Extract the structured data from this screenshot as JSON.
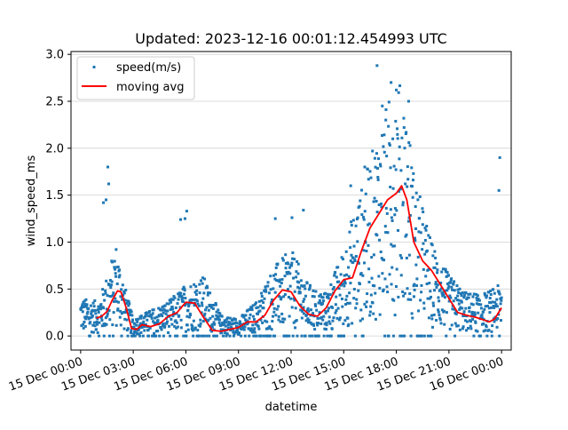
{
  "chart_data": {
    "type": "scatter",
    "title": "Updated: 2023-12-16 00:01:12.454993 UTC",
    "xlabel": "datetime",
    "ylabel": "wind_speed_ms",
    "x_unit": "hours since 15 Dec 00:00",
    "xlim": [
      "15 Dec 00:00 -0.55h",
      "16 Dec 00:00 +0.55h"
    ],
    "ylim": [
      -0.15,
      3.03
    ],
    "x_ticks": [
      {
        "hour": 0,
        "label": "15 Dec 00:00"
      },
      {
        "hour": 3,
        "label": "15 Dec 03:00"
      },
      {
        "hour": 6,
        "label": "15 Dec 06:00"
      },
      {
        "hour": 9,
        "label": "15 Dec 09:00"
      },
      {
        "hour": 12,
        "label": "15 Dec 12:00"
      },
      {
        "hour": 15,
        "label": "15 Dec 15:00"
      },
      {
        "hour": 18,
        "label": "15 Dec 18:00"
      },
      {
        "hour": 21,
        "label": "15 Dec 21:00"
      },
      {
        "hour": 24,
        "label": "16 Dec 00:00"
      }
    ],
    "y_ticks": [
      "0.0",
      "0.5",
      "1.0",
      "1.5",
      "2.0",
      "2.5",
      "3.0"
    ],
    "y_tick_values": [
      0,
      0.5,
      1.0,
      1.5,
      2.0,
      2.5,
      3.0
    ],
    "grid": "horizontal",
    "legend": {
      "position": "top-left",
      "entries": [
        {
          "label": "speed(m/s)",
          "color": "#1f77b4",
          "marker": "point"
        },
        {
          "label": "moving avg",
          "color": "#ff0000",
          "marker": "line"
        }
      ]
    },
    "series": [
      {
        "name": "speed(m/s)",
        "kind": "scatter",
        "color": "#1f77b4",
        "x_start_hour": 0,
        "x_end_hour": 24,
        "samples": 1400,
        "envelope_hours": [
          0,
          1,
          1.5,
          2,
          2.5,
          3,
          4,
          5,
          6,
          7,
          8,
          9,
          10,
          11,
          12,
          13,
          14,
          15,
          15.5,
          16,
          17,
          17.5,
          18,
          18.5,
          19,
          20,
          21,
          22,
          23,
          24
        ],
        "envelope_mean": [
          0.22,
          0.2,
          0.35,
          0.55,
          0.3,
          0.1,
          0.15,
          0.2,
          0.3,
          0.35,
          0.12,
          0.1,
          0.2,
          0.4,
          0.5,
          0.3,
          0.25,
          0.5,
          0.7,
          0.85,
          1.2,
          1.35,
          1.5,
          1.4,
          0.95,
          0.55,
          0.35,
          0.25,
          0.25,
          0.3
        ]
      },
      {
        "name": "moving avg",
        "kind": "line",
        "color": "#ff0000",
        "x": [
          0.9,
          1.2,
          1.5,
          1.8,
          2.1,
          2.3,
          2.6,
          2.9,
          3.2,
          3.5,
          4.0,
          4.5,
          5.0,
          5.5,
          6.0,
          6.5,
          7.0,
          7.5,
          8.0,
          8.5,
          9.0,
          9.5,
          10.0,
          10.5,
          11.0,
          11.5,
          12.0,
          12.5,
          13.0,
          13.5,
          14.0,
          14.5,
          15.0,
          15.5,
          16.0,
          16.5,
          17.0,
          17.5,
          18.0,
          18.3,
          18.6,
          19.0,
          19.5,
          20.0,
          20.5,
          21.0,
          21.5,
          22.0,
          22.5,
          23.0,
          23.3,
          23.6,
          24.0
        ],
        "y": [
          0.19,
          0.21,
          0.26,
          0.38,
          0.48,
          0.47,
          0.3,
          0.08,
          0.07,
          0.12,
          0.1,
          0.13,
          0.21,
          0.25,
          0.36,
          0.35,
          0.2,
          0.06,
          0.05,
          0.07,
          0.09,
          0.15,
          0.15,
          0.22,
          0.38,
          0.49,
          0.47,
          0.32,
          0.23,
          0.21,
          0.3,
          0.48,
          0.6,
          0.62,
          0.9,
          1.15,
          1.3,
          1.45,
          1.52,
          1.6,
          1.45,
          1.0,
          0.8,
          0.7,
          0.55,
          0.4,
          0.25,
          0.22,
          0.2,
          0.17,
          0.15,
          0.18,
          0.3
        ]
      }
    ],
    "outliers": [
      {
        "x": 1.55,
        "y": 1.8
      },
      {
        "x": 1.6,
        "y": 1.62
      },
      {
        "x": 1.45,
        "y": 1.45
      },
      {
        "x": 1.3,
        "y": 1.42
      },
      {
        "x": 6.05,
        "y": 1.33
      },
      {
        "x": 5.95,
        "y": 1.25
      },
      {
        "x": 5.7,
        "y": 1.24
      },
      {
        "x": 12.05,
        "y": 1.26
      },
      {
        "x": 11.1,
        "y": 1.25
      },
      {
        "x": 12.7,
        "y": 1.34
      },
      {
        "x": 16.9,
        "y": 2.88
      },
      {
        "x": 17.7,
        "y": 2.7
      },
      {
        "x": 18.0,
        "y": 2.62
      },
      {
        "x": 18.7,
        "y": 2.5
      },
      {
        "x": 17.2,
        "y": 2.45
      },
      {
        "x": 17.4,
        "y": 2.3
      },
      {
        "x": 23.9,
        "y": 1.9
      },
      {
        "x": 23.85,
        "y": 1.55
      },
      {
        "x": 15.4,
        "y": 1.6
      },
      {
        "x": 16.2,
        "y": 1.8
      },
      {
        "x": 17.8,
        "y": 2.1
      }
    ]
  }
}
